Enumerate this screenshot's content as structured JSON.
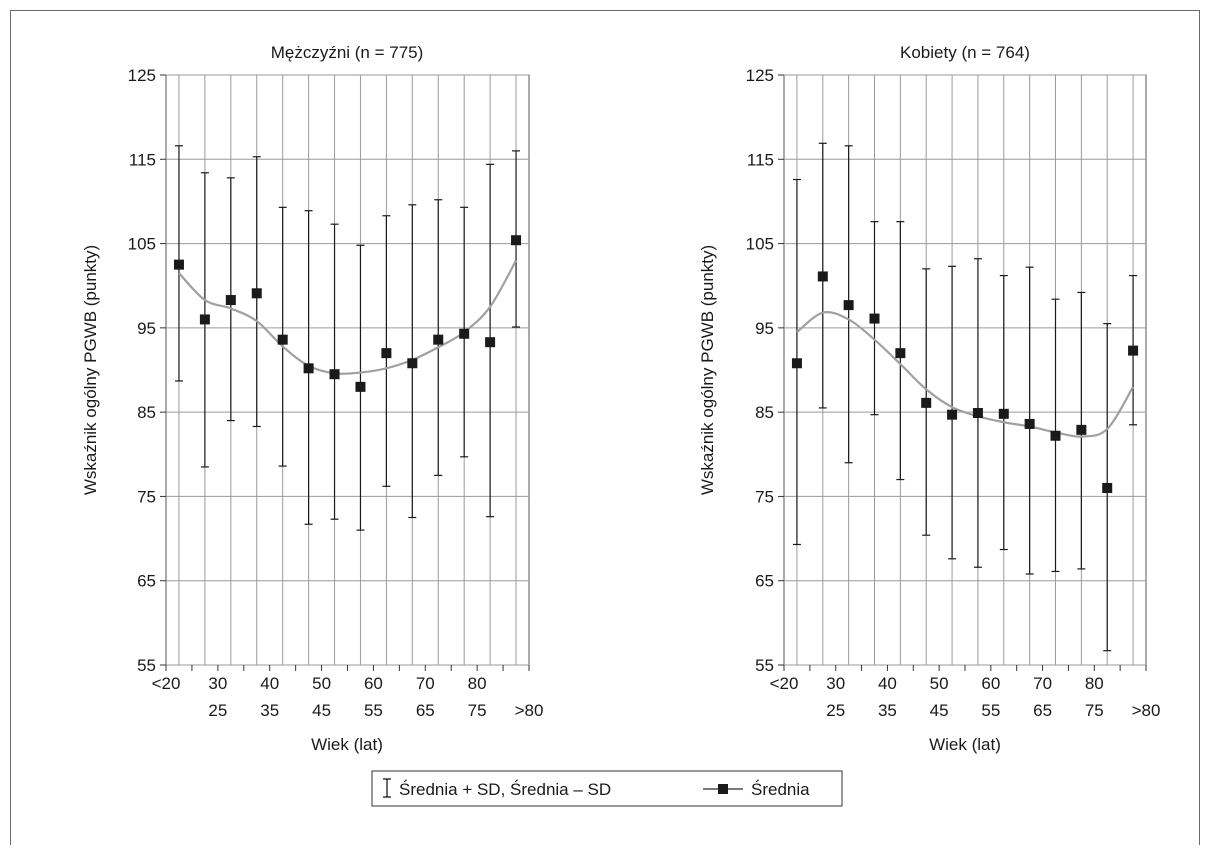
{
  "chart_data": [
    {
      "type": "line",
      "title": "Mężczyźni (n = 775)",
      "xlabel": "Wiek (lat)",
      "ylabel": "Wskaźnik ogólny PGWB (punkty)",
      "ylim": [
        55,
        125
      ],
      "yticks": [
        55,
        65,
        75,
        85,
        95,
        105,
        115,
        125
      ],
      "categories": [
        "<20",
        "25",
        "30",
        "35",
        "40",
        "45",
        "50",
        "55",
        "60",
        "65",
        "70",
        "75",
        "80",
        ">80"
      ],
      "grid": true,
      "series": [
        {
          "name": "Średnia",
          "values": [
            102.5,
            96.0,
            98.3,
            99.1,
            93.6,
            90.2,
            89.5,
            88.0,
            92.0,
            90.8,
            93.6,
            94.3,
            93.3,
            105.4
          ]
        },
        {
          "name": "Średnia + SD",
          "values": [
            116.6,
            113.4,
            112.8,
            115.3,
            109.3,
            108.9,
            107.3,
            104.8,
            108.3,
            109.6,
            110.2,
            109.3,
            114.4,
            116.0
          ]
        },
        {
          "name": "Średnia – SD",
          "values": [
            88.7,
            78.5,
            84.0,
            83.3,
            78.6,
            71.7,
            72.3,
            71.0,
            76.2,
            72.5,
            77.5,
            79.7,
            72.6,
            95.1
          ]
        }
      ],
      "trendline": [
        101.5,
        98.3,
        97.3,
        95.8,
        92.8,
        90.5,
        89.6,
        89.7,
        90.2,
        91.2,
        92.7,
        94.5,
        97.5,
        103.0
      ]
    },
    {
      "type": "line",
      "title": "Kobiety (n = 764)",
      "xlabel": "Wiek (lat)",
      "ylabel": "Wskaźnik ogólny PGWB (punkty)",
      "ylim": [
        55,
        125
      ],
      "yticks": [
        55,
        65,
        75,
        85,
        95,
        105,
        115,
        125
      ],
      "categories": [
        "<20",
        "25",
        "30",
        "35",
        "40",
        "45",
        "50",
        "55",
        "60",
        "65",
        "70",
        "75",
        "80",
        ">80"
      ],
      "grid": true,
      "series": [
        {
          "name": "Średnia",
          "values": [
            90.8,
            101.1,
            97.7,
            96.1,
            92.0,
            86.1,
            84.7,
            84.9,
            84.8,
            83.6,
            82.2,
            82.9,
            76.0,
            92.3
          ]
        },
        {
          "name": "Średnia + SD",
          "values": [
            112.6,
            116.9,
            116.6,
            107.6,
            107.6,
            102.0,
            102.3,
            103.2,
            101.2,
            102.2,
            98.4,
            99.2,
            95.5,
            101.2
          ]
        },
        {
          "name": "Średnia – SD",
          "values": [
            69.3,
            85.5,
            79.0,
            84.7,
            77.0,
            70.4,
            67.6,
            66.6,
            68.7,
            65.8,
            66.1,
            66.4,
            56.7,
            83.5
          ]
        }
      ],
      "trendline": [
        94.5,
        96.8,
        96.0,
        93.6,
        90.7,
        87.7,
        85.6,
        84.5,
        83.8,
        83.3,
        82.6,
        82.1,
        83.0,
        88.0
      ]
    }
  ],
  "legend": {
    "position": "bottom-center",
    "errorbar_label": "Średnia + SD, Średnia – SD",
    "mean_label": "Średnia"
  },
  "colors": {
    "trendline": "#a0a0a0",
    "marker": "#1a1a1a",
    "grid": "#9a9a9a",
    "errorbar": "#1a1a1a"
  }
}
